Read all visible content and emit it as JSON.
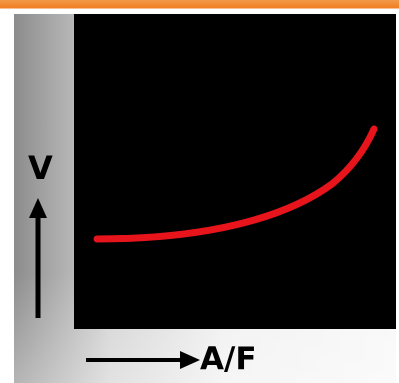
{
  "diagram": {
    "y_axis_label": "V",
    "x_axis_label": "A/F",
    "curve_color": "#e8141c",
    "plot_background": "#000000",
    "accent_color": "#ef7d22"
  }
}
